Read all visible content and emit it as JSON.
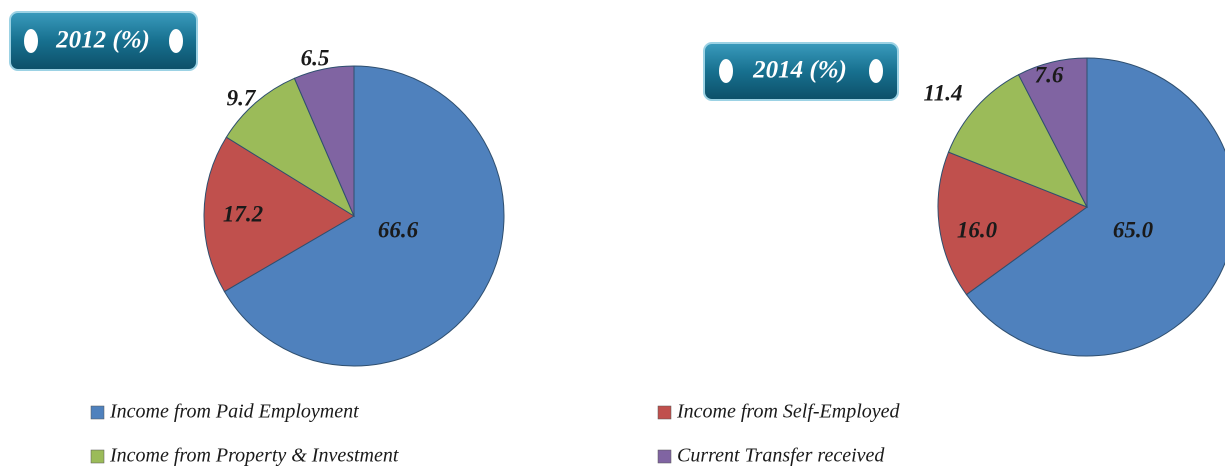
{
  "chart_data": [
    {
      "type": "pie",
      "title": "2012 (%)",
      "categories": [
        "Income from Paid Employment",
        "Income from Self-Employed",
        "Income from Property & Investment",
        "Current Transfer received"
      ],
      "values": [
        66.6,
        17.2,
        9.7,
        6.5
      ],
      "value_labels": [
        "66.6",
        "17.2",
        "9.7",
        "6.5"
      ],
      "colors": [
        "#4f81bd",
        "#c0504d",
        "#9bbb59",
        "#8064a2"
      ]
    },
    {
      "type": "pie",
      "title": "2014 (%)",
      "categories": [
        "Income from Paid Employment",
        "Income from Self-Employed",
        "Income from Property & Investment",
        "Current Transfer received"
      ],
      "values": [
        65.0,
        16.0,
        11.4,
        7.6
      ],
      "value_labels": [
        "65.0",
        "16.0",
        "11.4",
        "7.6"
      ],
      "colors": [
        "#4f81bd",
        "#c0504d",
        "#9bbb59",
        "#8064a2"
      ]
    }
  ]
}
